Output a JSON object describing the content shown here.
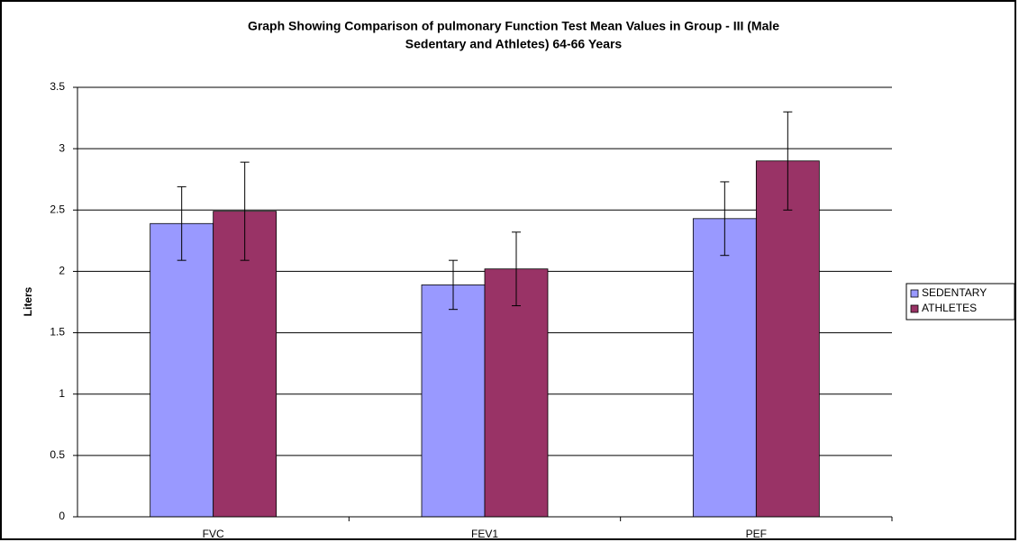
{
  "chart_data": {
    "type": "bar",
    "title": [
      "Graph Showing Comparison of pulmonary Function Test Mean Values in Group - III (Male",
      "Sedentary and Athletes) 64-66 Years"
    ],
    "y_label": "Liters",
    "categories": [
      "FVC",
      "FEV1",
      "PEF"
    ],
    "series": [
      {
        "name": "SEDENTARY",
        "color": "#9999ff",
        "values": [
          2.39,
          1.89,
          2.43
        ],
        "errors": [
          0.3,
          0.2,
          0.3
        ]
      },
      {
        "name": "ATHLETES",
        "color": "#993366",
        "values": [
          2.49,
          2.02,
          2.9
        ],
        "errors": [
          0.4,
          0.3,
          0.4
        ]
      }
    ],
    "ylim": [
      0,
      3.5
    ],
    "yticks": [
      0,
      0.5,
      1,
      1.5,
      2,
      2.5,
      3,
      3.5
    ],
    "grid": true,
    "legend": "right"
  }
}
